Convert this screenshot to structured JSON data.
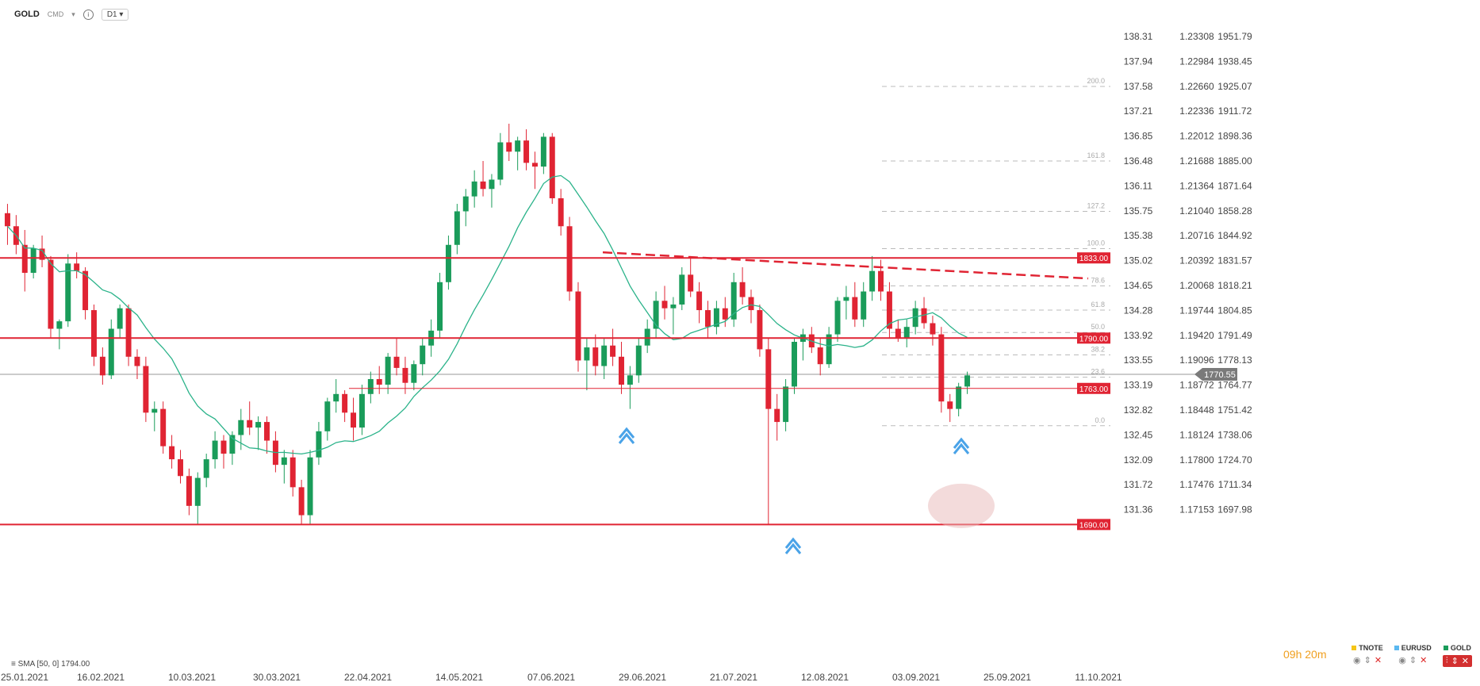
{
  "toolbar": {
    "symbol": "GOLD",
    "sub": "CMD",
    "timeframe": "D1",
    "info": "i"
  },
  "sma_label": "SMA [50, 0] 1794.00",
  "timer": "09h 20m",
  "legend": [
    {
      "name": "TNOTE",
      "color": "#f5c518"
    },
    {
      "name": "EURUSD",
      "color": "#5bb8f0"
    },
    {
      "name": "GOLD",
      "color": "#1a9c5a"
    }
  ],
  "chart_data": {
    "type": "candlestick",
    "x_tick_labels": [
      "25.01.2021",
      "16.02.2021",
      "10.03.2021",
      "30.03.2021",
      "22.04.2021",
      "14.05.2021",
      "07.06.2021",
      "29.06.2021",
      "21.07.2021",
      "12.08.2021",
      "03.09.2021",
      "25.09.2021",
      "11.10.2021"
    ],
    "y_axes": {
      "tnote": [
        "138.31",
        "137.94",
        "137.58",
        "137.21",
        "136.85",
        "136.48",
        "136.11",
        "135.75",
        "135.38",
        "135.02",
        "134.65",
        "134.28",
        "133.92",
        "133.55",
        "133.19",
        "132.82",
        "132.45",
        "132.09",
        "131.72",
        "131.36"
      ],
      "eurusd": [
        "1.23308",
        "1.22984",
        "1.22660",
        "1.22336",
        "1.22012",
        "1.21688",
        "1.21364",
        "1.21040",
        "1.20716",
        "1.20392",
        "1.20068",
        "1.19744",
        "1.19420",
        "1.19096",
        "1.18772",
        "1.18448",
        "1.18124",
        "1.17800",
        "1.17476",
        "1.17153"
      ],
      "gold": [
        "1951.79",
        "1938.45",
        "1925.07",
        "1911.72",
        "1898.36",
        "1885.00",
        "1871.64",
        "1858.28",
        "1844.92",
        "1831.57",
        "1818.21",
        "1804.85",
        "1791.49",
        "1778.13",
        "1764.77",
        "1751.42",
        "1738.06",
        "1724.70",
        "1711.34",
        "1697.98"
      ]
    },
    "current_price": "1770.55",
    "levels": [
      {
        "label": "1833.00",
        "value": 1833
      },
      {
        "label": "1790.00",
        "value": 1790
      },
      {
        "label": "1763.00",
        "value": 1763
      },
      {
        "label": "1690.00",
        "value": 1690
      }
    ],
    "fib_labels": [
      "200.0",
      "161.8",
      "127.2",
      "100.0",
      "78.6",
      "61.8",
      "50.0",
      "38.2",
      "23.6",
      "0.0"
    ],
    "sma": {
      "period": 50,
      "last": 1794.0
    },
    "series": [
      {
        "name": "GOLD",
        "color": "#1a9c5a"
      },
      {
        "name": "EURUSD",
        "color": "#5bb8f0"
      },
      {
        "name": "TNOTE",
        "color": "#f5c518"
      }
    ],
    "gold_ohlc": [
      [
        1857,
        1862,
        1840,
        1850
      ],
      [
        1850,
        1856,
        1835,
        1840
      ],
      [
        1840,
        1848,
        1815,
        1825
      ],
      [
        1825,
        1840,
        1822,
        1838
      ],
      [
        1838,
        1845,
        1828,
        1832
      ],
      [
        1832,
        1834,
        1790,
        1795
      ],
      [
        1795,
        1800,
        1784,
        1799
      ],
      [
        1799,
        1835,
        1796,
        1830
      ],
      [
        1830,
        1836,
        1822,
        1826
      ],
      [
        1826,
        1828,
        1800,
        1805
      ],
      [
        1805,
        1808,
        1775,
        1780
      ],
      [
        1780,
        1785,
        1765,
        1770
      ],
      [
        1770,
        1800,
        1768,
        1795
      ],
      [
        1795,
        1808,
        1790,
        1806
      ],
      [
        1806,
        1808,
        1775,
        1780
      ],
      [
        1780,
        1784,
        1768,
        1775
      ],
      [
        1775,
        1780,
        1745,
        1750
      ],
      [
        1750,
        1756,
        1740,
        1752
      ],
      [
        1752,
        1756,
        1728,
        1732
      ],
      [
        1732,
        1738,
        1720,
        1725
      ],
      [
        1725,
        1730,
        1712,
        1716
      ],
      [
        1716,
        1720,
        1695,
        1700
      ],
      [
        1700,
        1718,
        1690,
        1715
      ],
      [
        1715,
        1728,
        1710,
        1725
      ],
      [
        1725,
        1740,
        1720,
        1735
      ],
      [
        1735,
        1738,
        1720,
        1728
      ],
      [
        1728,
        1740,
        1722,
        1738
      ],
      [
        1738,
        1752,
        1730,
        1746
      ],
      [
        1746,
        1756,
        1738,
        1742
      ],
      [
        1742,
        1748,
        1730,
        1745
      ],
      [
        1745,
        1748,
        1728,
        1735
      ],
      [
        1735,
        1740,
        1718,
        1722
      ],
      [
        1722,
        1730,
        1712,
        1726
      ],
      [
        1726,
        1730,
        1705,
        1710
      ],
      [
        1710,
        1714,
        1690,
        1695
      ],
      [
        1695,
        1730,
        1690,
        1726
      ],
      [
        1726,
        1745,
        1722,
        1740
      ],
      [
        1740,
        1758,
        1735,
        1756
      ],
      [
        1756,
        1768,
        1750,
        1760
      ],
      [
        1760,
        1762,
        1745,
        1750
      ],
      [
        1750,
        1758,
        1735,
        1742
      ],
      [
        1742,
        1765,
        1738,
        1760
      ],
      [
        1760,
        1772,
        1755,
        1768
      ],
      [
        1768,
        1775,
        1760,
        1765
      ],
      [
        1765,
        1782,
        1760,
        1780
      ],
      [
        1780,
        1790,
        1770,
        1774
      ],
      [
        1774,
        1780,
        1760,
        1766
      ],
      [
        1766,
        1778,
        1762,
        1776
      ],
      [
        1776,
        1790,
        1770,
        1786
      ],
      [
        1786,
        1800,
        1780,
        1794
      ],
      [
        1794,
        1825,
        1790,
        1820
      ],
      [
        1820,
        1845,
        1816,
        1840
      ],
      [
        1840,
        1862,
        1835,
        1858
      ],
      [
        1858,
        1870,
        1850,
        1866
      ],
      [
        1866,
        1880,
        1860,
        1874
      ],
      [
        1874,
        1885,
        1866,
        1870
      ],
      [
        1870,
        1878,
        1860,
        1875
      ],
      [
        1875,
        1900,
        1872,
        1895
      ],
      [
        1895,
        1905,
        1885,
        1890
      ],
      [
        1890,
        1898,
        1880,
        1896
      ],
      [
        1896,
        1902,
        1880,
        1884
      ],
      [
        1884,
        1890,
        1870,
        1882
      ],
      [
        1882,
        1900,
        1878,
        1898
      ],
      [
        1898,
        1900,
        1862,
        1865
      ],
      [
        1865,
        1870,
        1845,
        1850
      ],
      [
        1850,
        1855,
        1810,
        1815
      ],
      [
        1815,
        1820,
        1772,
        1778
      ],
      [
        1778,
        1790,
        1762,
        1785
      ],
      [
        1785,
        1792,
        1770,
        1775
      ],
      [
        1775,
        1790,
        1768,
        1786
      ],
      [
        1786,
        1795,
        1775,
        1780
      ],
      [
        1780,
        1788,
        1760,
        1765
      ],
      [
        1765,
        1775,
        1752,
        1770
      ],
      [
        1770,
        1790,
        1766,
        1786
      ],
      [
        1786,
        1800,
        1782,
        1795
      ],
      [
        1795,
        1815,
        1790,
        1810
      ],
      [
        1810,
        1818,
        1800,
        1806
      ],
      [
        1806,
        1812,
        1792,
        1808
      ],
      [
        1808,
        1828,
        1805,
        1824
      ],
      [
        1824,
        1834,
        1812,
        1815
      ],
      [
        1815,
        1820,
        1798,
        1805
      ],
      [
        1805,
        1810,
        1790,
        1796
      ],
      [
        1796,
        1810,
        1792,
        1806
      ],
      [
        1806,
        1812,
        1796,
        1800
      ],
      [
        1800,
        1825,
        1796,
        1820
      ],
      [
        1820,
        1828,
        1808,
        1812
      ],
      [
        1812,
        1816,
        1798,
        1805
      ],
      [
        1805,
        1808,
        1780,
        1784
      ],
      [
        1784,
        1790,
        1690,
        1752
      ],
      [
        1752,
        1760,
        1735,
        1745
      ],
      [
        1745,
        1768,
        1740,
        1764
      ],
      [
        1764,
        1790,
        1760,
        1788
      ],
      [
        1788,
        1795,
        1778,
        1792
      ],
      [
        1792,
        1796,
        1782,
        1785
      ],
      [
        1785,
        1790,
        1770,
        1776
      ],
      [
        1776,
        1796,
        1774,
        1792
      ],
      [
        1792,
        1812,
        1788,
        1810
      ],
      [
        1810,
        1818,
        1800,
        1812
      ],
      [
        1812,
        1820,
        1796,
        1800
      ],
      [
        1800,
        1820,
        1796,
        1815
      ],
      [
        1815,
        1834,
        1810,
        1826
      ],
      [
        1826,
        1832,
        1810,
        1815
      ],
      [
        1815,
        1820,
        1790,
        1795
      ],
      [
        1795,
        1800,
        1788,
        1790
      ],
      [
        1790,
        1800,
        1785,
        1796
      ],
      [
        1796,
        1810,
        1792,
        1806
      ],
      [
        1806,
        1812,
        1795,
        1798
      ],
      [
        1798,
        1802,
        1786,
        1792
      ],
      [
        1792,
        1796,
        1750,
        1756
      ],
      [
        1756,
        1760,
        1745,
        1752
      ],
      [
        1752,
        1766,
        1748,
        1764
      ],
      [
        1764,
        1772,
        1760,
        1770
      ]
    ]
  }
}
